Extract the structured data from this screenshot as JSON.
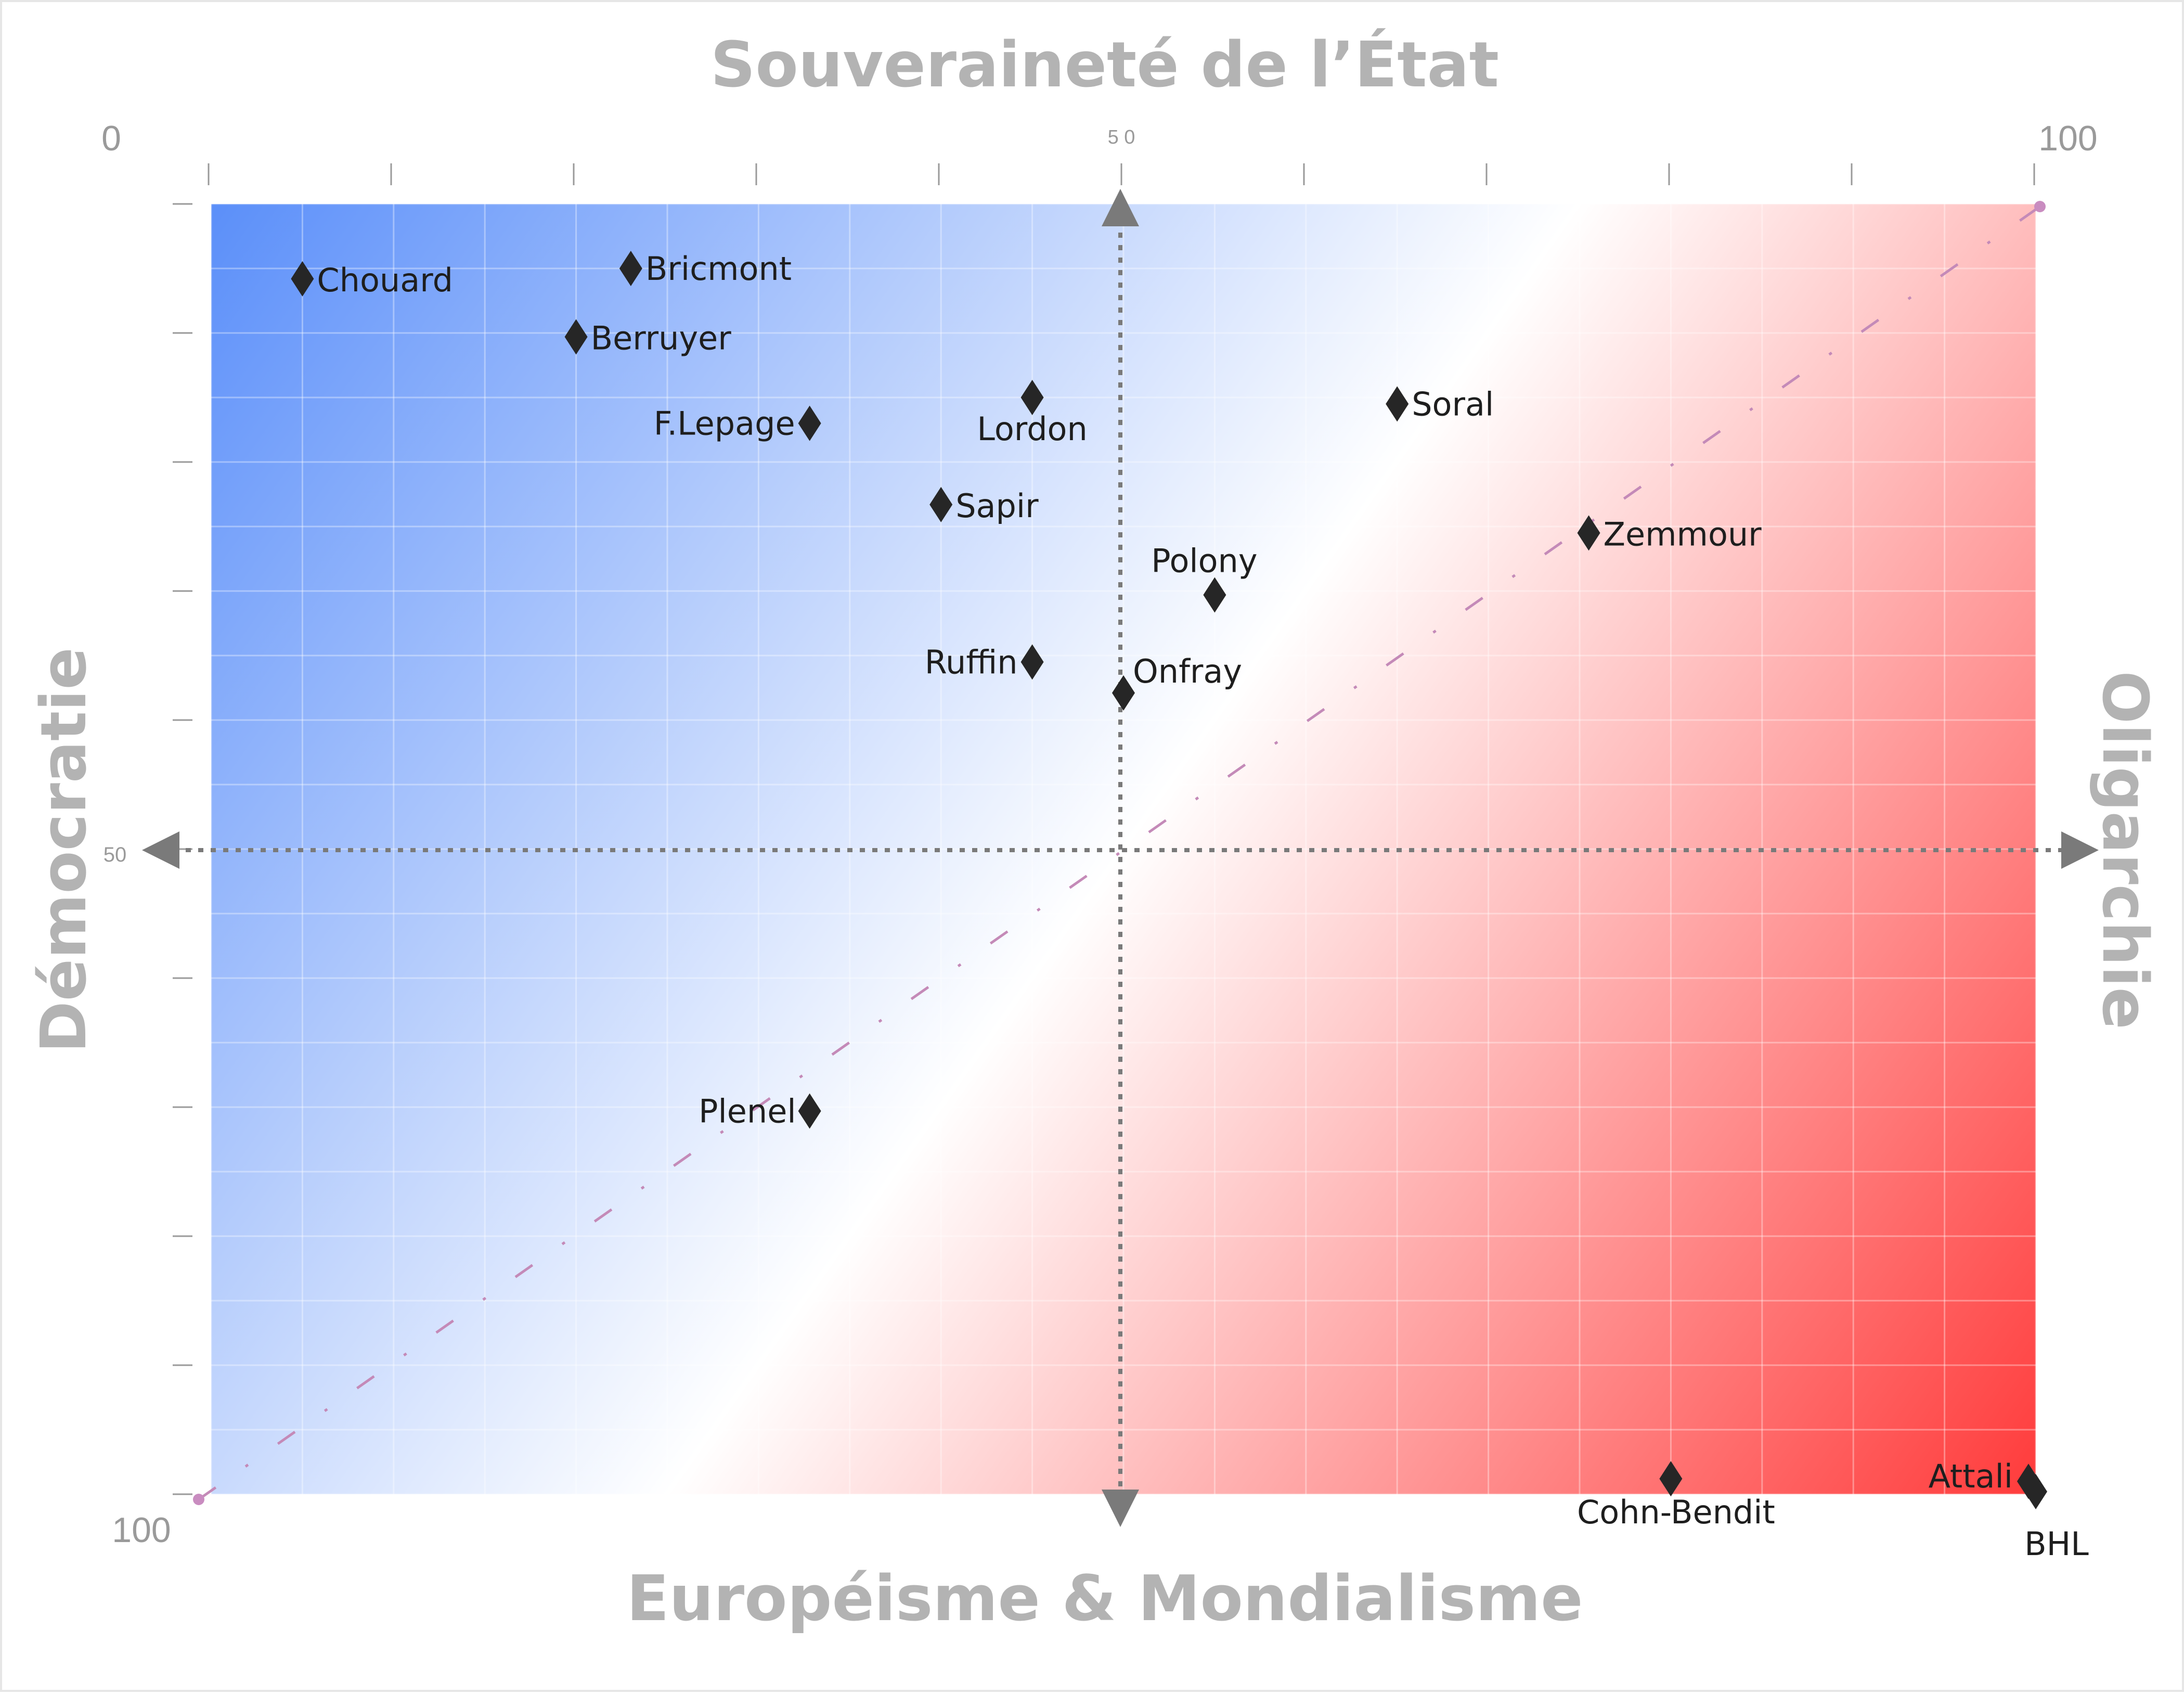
{
  "chart_data": {
    "type": "scatter",
    "titles": {
      "top": "Souveraineté de l’État",
      "bottom": "Européisme & Mondialisme",
      "left": "Démocratie",
      "right": "Oligarchie"
    },
    "scale_labels": {
      "top_left": "0",
      "top_mid": "5 0",
      "top_right": "100",
      "left_mid": "50",
      "bottom_left": "100"
    },
    "xlim": [
      0,
      100
    ],
    "ylim": [
      0,
      100
    ],
    "y_direction": "top-to-bottom",
    "gradient": {
      "top_left": "#5b8ff9",
      "mid": "#ffffff",
      "bottom_right": "#ff3b3b"
    },
    "points": [
      {
        "name": "Chouard",
        "x": 5,
        "y": 5.8
      },
      {
        "name": "Bricmont",
        "x": 23,
        "y": 5.0
      },
      {
        "name": "Berruyer",
        "x": 20,
        "y": 10.3
      },
      {
        "name": "F.Lepage",
        "x": 32.8,
        "y": 17.0
      },
      {
        "name": "Lordon",
        "x": 45,
        "y": 15.0
      },
      {
        "name": "Soral",
        "x": 65,
        "y": 15.5
      },
      {
        "name": "Sapir",
        "x": 40,
        "y": 23.3
      },
      {
        "name": "Zemmour",
        "x": 75.5,
        "y": 25.5
      },
      {
        "name": "Polony",
        "x": 55,
        "y": 30.3
      },
      {
        "name": "Ruffin",
        "x": 45,
        "y": 35.5
      },
      {
        "name": "Onfray",
        "x": 50,
        "y": 37.9
      },
      {
        "name": "Plenel",
        "x": 32.8,
        "y": 70.3
      },
      {
        "name": "Cohn-Bendit",
        "x": 80,
        "y": 98.8
      },
      {
        "name": "Attali",
        "x": 99.6,
        "y": 99.0
      },
      {
        "name": "BHL",
        "x": 100,
        "y": 99.8
      }
    ]
  }
}
